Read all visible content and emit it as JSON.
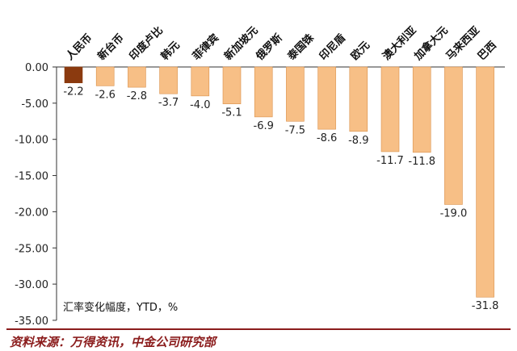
{
  "chart_data": {
    "type": "bar",
    "categories": [
      "人民币",
      "新台币",
      "印度卢比",
      "韩元",
      "菲律宾",
      "新加坡元",
      "俄罗斯",
      "泰国铢",
      "印尼盾",
      "欧元",
      "澳大利亚",
      "加拿大元",
      "马来西亚",
      "巴西"
    ],
    "values": [
      -2.2,
      -2.6,
      -2.8,
      -3.7,
      -4.0,
      -5.1,
      -6.9,
      -7.5,
      -8.6,
      -8.9,
      -11.7,
      -11.8,
      -19.0,
      -31.8
    ],
    "data_labels": [
      "-2.2",
      "-2.6",
      "-2.8",
      "-3.7",
      "-4.0",
      "-5.1",
      "-6.9",
      "-7.5",
      "-8.6",
      "-8.9",
      "-11.7",
      "-11.8",
      "-19.0",
      "-31.8"
    ],
    "yticks": [
      "0.00",
      "-5.00",
      "-10.00",
      "-15.00",
      "-20.00",
      "-25.00",
      "-30.00",
      "-35.00"
    ],
    "ytick_values": [
      0,
      -5,
      -10,
      -15,
      -20,
      -25,
      -30,
      -35
    ],
    "ylim": [
      -35,
      0
    ],
    "annotation": "汇率变化幅度，YTD，%",
    "grid": false,
    "colors": {
      "highlight": "#8b3a0f",
      "bar": "#f7bf86",
      "bar_edge": "#d9904a"
    }
  },
  "footer": {
    "source": "资料来源：万得资讯，中金公司研究部"
  }
}
